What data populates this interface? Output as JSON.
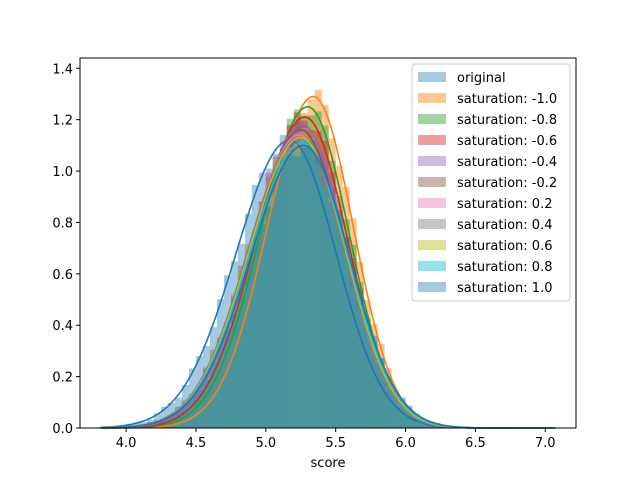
{
  "chart_data": {
    "type": "histogram-kde",
    "xlabel": "score",
    "ylabel": "",
    "xlim": [
      3.67,
      7.22
    ],
    "ylim": [
      0.0,
      1.44
    ],
    "x_ticks": [
      "4.0",
      "4.5",
      "5.0",
      "5.5",
      "6.0",
      "6.5",
      "7.0"
    ],
    "x_tick_values": [
      4.0,
      4.5,
      5.0,
      5.5,
      6.0,
      6.5,
      7.0
    ],
    "y_ticks": [
      "0.0",
      "0.2",
      "0.4",
      "0.6",
      "0.8",
      "1.0",
      "1.2",
      "1.4"
    ],
    "y_tick_values": [
      0.0,
      0.2,
      0.4,
      0.6,
      0.8,
      1.0,
      1.2,
      1.4
    ],
    "legend_position": "upper right",
    "grid": false,
    "series": [
      {
        "name": "original",
        "color": "#1f77b4",
        "peak_x": 5.17,
        "peak_y": 1.12,
        "sd": 0.355,
        "hist_alpha": 0.4
      },
      {
        "name": "saturation: -1.0",
        "color": "#ff7f0e",
        "peak_x": 5.34,
        "peak_y": 1.29,
        "sd": 0.305,
        "hist_alpha": 0.45
      },
      {
        "name": "saturation: -0.8",
        "color": "#2ca02c",
        "peak_x": 5.3,
        "peak_y": 1.25,
        "sd": 0.315,
        "hist_alpha": 0.45
      },
      {
        "name": "saturation: -0.6",
        "color": "#d62728",
        "peak_x": 5.28,
        "peak_y": 1.21,
        "sd": 0.325,
        "hist_alpha": 0.45
      },
      {
        "name": "saturation: -0.4",
        "color": "#9467bd",
        "peak_x": 5.26,
        "peak_y": 1.18,
        "sd": 0.332,
        "hist_alpha": 0.45
      },
      {
        "name": "saturation: -0.2",
        "color": "#8c564b",
        "peak_x": 5.25,
        "peak_y": 1.16,
        "sd": 0.338,
        "hist_alpha": 0.45
      },
      {
        "name": "saturation: 0.2",
        "color": "#e377c2",
        "peak_x": 5.24,
        "peak_y": 1.14,
        "sd": 0.342,
        "hist_alpha": 0.45
      },
      {
        "name": "saturation: 0.4",
        "color": "#7f7f7f",
        "peak_x": 5.24,
        "peak_y": 1.13,
        "sd": 0.344,
        "hist_alpha": 0.45
      },
      {
        "name": "saturation: 0.6",
        "color": "#bcbd22",
        "peak_x": 5.25,
        "peak_y": 1.13,
        "sd": 0.345,
        "hist_alpha": 0.45
      },
      {
        "name": "saturation: 0.8",
        "color": "#17becf",
        "peak_x": 5.26,
        "peak_y": 1.11,
        "sd": 0.348,
        "hist_alpha": 0.45
      },
      {
        "name": "saturation: 1.0",
        "color": "#1f77b4",
        "peak_x": 5.27,
        "peak_y": 1.1,
        "sd": 0.35,
        "hist_alpha": 0.4
      }
    ]
  }
}
